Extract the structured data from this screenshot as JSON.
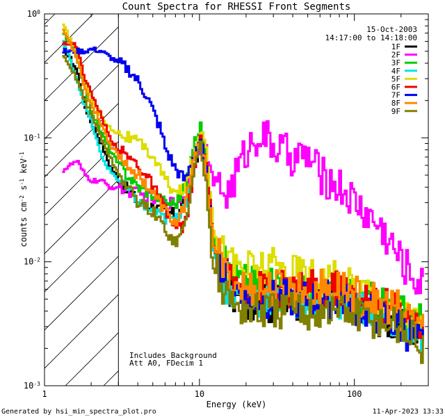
{
  "chart_data": {
    "type": "line",
    "title": "Count Spectra for RHESSI Front Segments",
    "xlabel": "Energy (keV)",
    "ylabel": "counts cm^-2 s^-1 keV^-1",
    "xscale": "log",
    "yscale": "log",
    "xlim": [
      1,
      300
    ],
    "ylim": [
      0.001,
      1
    ],
    "x_ticks": [
      {
        "value": 1,
        "label": "1"
      },
      {
        "value": 10,
        "label": "10"
      },
      {
        "value": 100,
        "label": "100"
      }
    ],
    "y_ticks": [
      {
        "value": 1,
        "label": "10",
        "exp": "0"
      },
      {
        "value": 0.1,
        "label": "10",
        "exp": "-1"
      },
      {
        "value": 0.01,
        "label": "10",
        "exp": "-2"
      },
      {
        "value": 0.001,
        "label": "10",
        "exp": "-3"
      }
    ],
    "date": "15-Oct-2003",
    "time_range": "14:17:00 to 14:18:00",
    "hatched_region_max_energy": 3,
    "annotations": [
      "Includes Background",
      "Att A0, FDecim 1"
    ],
    "series": [
      {
        "name": "1F",
        "color": "#000000",
        "x": [
          1.3,
          1.6,
          1.8,
          2.0,
          2.3,
          2.6,
          3.0,
          4.0,
          5.0,
          6.0,
          7.0,
          8.0,
          9.0,
          10.0,
          11.0,
          12.0,
          15.0,
          20.0,
          30.0,
          50.0,
          80.0,
          120.0,
          200.0,
          280.0
        ],
        "y": [
          0.55,
          0.35,
          0.18,
          0.13,
          0.09,
          0.06,
          0.045,
          0.03,
          0.028,
          0.025,
          0.024,
          0.032,
          0.05,
          0.1,
          0.05,
          0.015,
          0.006,
          0.005,
          0.0045,
          0.005,
          0.005,
          0.004,
          0.003,
          0.0025
        ]
      },
      {
        "name": "2F",
        "color": "#ff00ff",
        "x": [
          1.3,
          1.6,
          1.8,
          2.0,
          2.3,
          2.6,
          3.0,
          4.0,
          5.0,
          6.0,
          7.0,
          8.0,
          9.0,
          10.0,
          11.0,
          12.0,
          15.0,
          20.0,
          24.0,
          30.0,
          40.0,
          50.0,
          60.0,
          80.0,
          100.0,
          150.0,
          200.0,
          280.0
        ],
        "y": [
          0.055,
          0.065,
          0.05,
          0.045,
          0.045,
          0.04,
          0.04,
          0.035,
          0.032,
          0.03,
          0.03,
          0.035,
          0.06,
          0.09,
          0.08,
          0.045,
          0.035,
          0.08,
          0.11,
          0.085,
          0.07,
          0.07,
          0.05,
          0.04,
          0.03,
          0.018,
          0.01,
          0.006
        ]
      },
      {
        "name": "3F",
        "color": "#00cc00",
        "x": [
          1.3,
          1.6,
          1.8,
          2.0,
          2.3,
          2.6,
          3.0,
          4.0,
          5.0,
          6.0,
          7.0,
          8.0,
          9.0,
          10.0,
          11.0,
          12.0,
          15.0,
          20.0,
          30.0,
          50.0,
          80.0,
          120.0,
          200.0,
          280.0
        ],
        "y": [
          0.7,
          0.45,
          0.25,
          0.16,
          0.11,
          0.08,
          0.06,
          0.04,
          0.035,
          0.03,
          0.03,
          0.04,
          0.08,
          0.13,
          0.06,
          0.018,
          0.008,
          0.007,
          0.006,
          0.0055,
          0.006,
          0.005,
          0.004,
          0.003
        ]
      },
      {
        "name": "4F",
        "color": "#00e5e5",
        "x": [
          1.3,
          1.6,
          1.8,
          2.0,
          2.3,
          2.6,
          3.0,
          4.0,
          5.0,
          6.0,
          7.0,
          8.0,
          9.0,
          10.0,
          11.0,
          12.0,
          15.0,
          20.0,
          30.0,
          50.0,
          80.0,
          120.0,
          200.0,
          280.0
        ],
        "y": [
          0.6,
          0.3,
          0.18,
          0.13,
          0.07,
          0.055,
          0.045,
          0.03,
          0.025,
          0.022,
          0.022,
          0.03,
          0.06,
          0.1,
          0.05,
          0.014,
          0.006,
          0.005,
          0.005,
          0.005,
          0.005,
          0.004,
          0.003,
          0.0025
        ]
      },
      {
        "name": "5F",
        "color": "#dddd00",
        "x": [
          1.3,
          1.6,
          1.8,
          2.0,
          2.3,
          2.6,
          3.0,
          4.0,
          5.0,
          6.0,
          7.0,
          8.0,
          9.0,
          10.0,
          11.0,
          12.0,
          15.0,
          20.0,
          30.0,
          50.0,
          80.0,
          120.0,
          200.0,
          280.0
        ],
        "y": [
          0.8,
          0.5,
          0.3,
          0.2,
          0.15,
          0.12,
          0.11,
          0.09,
          0.07,
          0.045,
          0.035,
          0.04,
          0.07,
          0.12,
          0.09,
          0.02,
          0.01,
          0.009,
          0.009,
          0.008,
          0.007,
          0.006,
          0.004,
          0.003
        ]
      },
      {
        "name": "6F",
        "color": "#ee0000",
        "x": [
          1.3,
          1.6,
          1.8,
          2.0,
          2.3,
          2.6,
          3.0,
          4.0,
          5.0,
          6.0,
          7.0,
          8.0,
          9.0,
          10.0,
          11.0,
          12.0,
          15.0,
          20.0,
          30.0,
          50.0,
          80.0,
          120.0,
          200.0,
          280.0
        ],
        "y": [
          0.6,
          0.55,
          0.3,
          0.22,
          0.15,
          0.1,
          0.08,
          0.06,
          0.04,
          0.025,
          0.018,
          0.02,
          0.05,
          0.1,
          0.06,
          0.015,
          0.007,
          0.006,
          0.006,
          0.006,
          0.006,
          0.005,
          0.004,
          0.003
        ]
      },
      {
        "name": "7F",
        "color": "#0000ee",
        "x": [
          1.3,
          1.6,
          1.8,
          2.0,
          2.3,
          2.6,
          3.0,
          3.5,
          4.0,
          4.5,
          5.0,
          5.5,
          6.0,
          7.0,
          8.0,
          9.0,
          10.0,
          11.0,
          12.0,
          15.0,
          20.0,
          30.0,
          50.0,
          80.0,
          120.0,
          200.0,
          280.0
        ],
        "y": [
          0.5,
          0.5,
          0.5,
          0.52,
          0.5,
          0.45,
          0.4,
          0.35,
          0.28,
          0.22,
          0.16,
          0.12,
          0.08,
          0.055,
          0.045,
          0.07,
          0.1,
          0.05,
          0.015,
          0.007,
          0.005,
          0.005,
          0.005,
          0.005,
          0.004,
          0.003,
          0.002
        ]
      },
      {
        "name": "8F",
        "color": "#ff8800",
        "x": [
          1.3,
          1.6,
          1.8,
          2.0,
          2.3,
          2.6,
          3.0,
          4.0,
          5.0,
          6.0,
          7.0,
          8.0,
          9.0,
          10.0,
          11.0,
          12.0,
          15.0,
          20.0,
          30.0,
          50.0,
          80.0,
          120.0,
          200.0,
          280.0
        ],
        "y": [
          0.75,
          0.45,
          0.25,
          0.18,
          0.13,
          0.09,
          0.07,
          0.05,
          0.035,
          0.025,
          0.02,
          0.03,
          0.06,
          0.1,
          0.05,
          0.015,
          0.007,
          0.006,
          0.006,
          0.006,
          0.006,
          0.005,
          0.004,
          0.003
        ]
      },
      {
        "name": "9F",
        "color": "#808000",
        "x": [
          1.3,
          1.6,
          1.8,
          2.0,
          2.3,
          2.6,
          3.0,
          4.0,
          5.0,
          6.0,
          7.0,
          8.0,
          9.0,
          10.0,
          11.0,
          12.0,
          15.0,
          20.0,
          30.0,
          50.0,
          80.0,
          120.0,
          200.0,
          280.0
        ],
        "y": [
          0.45,
          0.3,
          0.2,
          0.15,
          0.1,
          0.07,
          0.05,
          0.03,
          0.025,
          0.018,
          0.014,
          0.02,
          0.05,
          0.09,
          0.04,
          0.01,
          0.005,
          0.004,
          0.004,
          0.004,
          0.004,
          0.0035,
          0.003,
          0.002
        ]
      }
    ]
  },
  "footer": {
    "generated_by": "Generated by hsi_min_spectra_plot.pro",
    "timestamp": "11-Apr-2023 13:33"
  }
}
